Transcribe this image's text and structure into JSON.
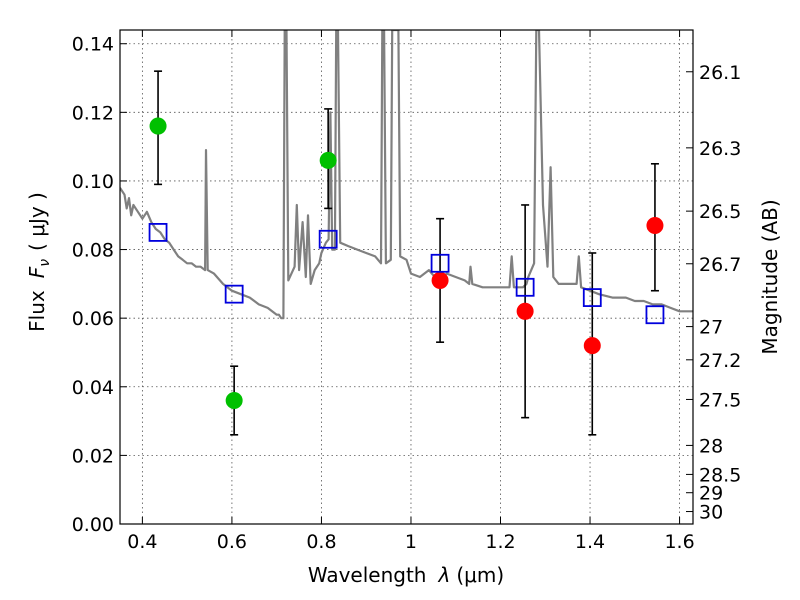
{
  "chart_data": {
    "type": "scatter",
    "xlabel": "Wavelength",
    "xlabel_symbol": "λ",
    "xlabel_unit": "(μm)",
    "ylabel": "Flux",
    "ylabel_symbol": "F",
    "ylabel_symbol_sub": "ν",
    "ylabel_unit": "( μJy )",
    "y2label": "Magnitude (AB)",
    "xlim": [
      0.35,
      1.63
    ],
    "ylim": [
      0.0,
      0.144
    ],
    "grid": true,
    "xticks": [
      {
        "value": 0.4,
        "label": "0.4"
      },
      {
        "value": 0.6,
        "label": "0.6"
      },
      {
        "value": 0.8,
        "label": "0.8"
      },
      {
        "value": 1.0,
        "label": "1"
      },
      {
        "value": 1.2,
        "label": "1.2"
      },
      {
        "value": 1.4,
        "label": "1.4"
      },
      {
        "value": 1.6,
        "label": "1.6"
      }
    ],
    "yticks": [
      {
        "value": 0.0,
        "label": "0.00"
      },
      {
        "value": 0.02,
        "label": "0.02"
      },
      {
        "value": 0.04,
        "label": "0.04"
      },
      {
        "value": 0.06,
        "label": "0.06"
      },
      {
        "value": 0.08,
        "label": "0.08"
      },
      {
        "value": 0.1,
        "label": "0.10"
      },
      {
        "value": 0.12,
        "label": "0.12"
      },
      {
        "value": 0.14,
        "label": "0.14"
      }
    ],
    "y2ticks": [
      {
        "value": 26.1,
        "label": "26.1"
      },
      {
        "value": 26.3,
        "label": "26.3"
      },
      {
        "value": 26.5,
        "label": "26.5"
      },
      {
        "value": 26.7,
        "label": "26.7"
      },
      {
        "value": 27.0,
        "label": "27"
      },
      {
        "value": 27.2,
        "label": "27.2"
      },
      {
        "value": 27.5,
        "label": "27.5"
      },
      {
        "value": 28.0,
        "label": "28"
      },
      {
        "value": 28.5,
        "label": "28.5"
      },
      {
        "value": 29.0,
        "label": "29"
      },
      {
        "value": 30.0,
        "label": "30"
      }
    ],
    "series": [
      {
        "type": "line",
        "color": "#808080",
        "points": [
          [
            0.35,
            0.098
          ],
          [
            0.36,
            0.096
          ],
          [
            0.365,
            0.092
          ],
          [
            0.37,
            0.095
          ],
          [
            0.375,
            0.09
          ],
          [
            0.38,
            0.093
          ],
          [
            0.39,
            0.091
          ],
          [
            0.4,
            0.089
          ],
          [
            0.41,
            0.091
          ],
          [
            0.42,
            0.088
          ],
          [
            0.43,
            0.086
          ],
          [
            0.44,
            0.085
          ],
          [
            0.45,
            0.083
          ],
          [
            0.46,
            0.082
          ],
          [
            0.47,
            0.08
          ],
          [
            0.48,
            0.078
          ],
          [
            0.49,
            0.077
          ],
          [
            0.5,
            0.076
          ],
          [
            0.51,
            0.076
          ],
          [
            0.52,
            0.075
          ],
          [
            0.53,
            0.075
          ],
          [
            0.54,
            0.074
          ],
          [
            0.542,
            0.109
          ],
          [
            0.546,
            0.074
          ],
          [
            0.56,
            0.073
          ],
          [
            0.58,
            0.07
          ],
          [
            0.6,
            0.068
          ],
          [
            0.62,
            0.067
          ],
          [
            0.64,
            0.066
          ],
          [
            0.66,
            0.064
          ],
          [
            0.68,
            0.063
          ],
          [
            0.7,
            0.061
          ],
          [
            0.705,
            0.061
          ],
          [
            0.71,
            0.06
          ],
          [
            0.715,
            0.06
          ],
          [
            0.718,
            0.144
          ],
          [
            0.722,
            0.144
          ],
          [
            0.726,
            0.071
          ],
          [
            0.74,
            0.075
          ],
          [
            0.745,
            0.093
          ],
          [
            0.75,
            0.074
          ],
          [
            0.758,
            0.088
          ],
          [
            0.765,
            0.072
          ],
          [
            0.77,
            0.09
          ],
          [
            0.776,
            0.07
          ],
          [
            0.785,
            0.074
          ],
          [
            0.795,
            0.076
          ],
          [
            0.8,
            0.079
          ],
          [
            0.81,
            0.082
          ],
          [
            0.816,
            0.083
          ],
          [
            0.82,
            0.12
          ],
          [
            0.824,
            0.08
          ],
          [
            0.83,
            0.08
          ],
          [
            0.833,
            0.144
          ],
          [
            0.837,
            0.144
          ],
          [
            0.842,
            0.082
          ],
          [
            0.86,
            0.081
          ],
          [
            0.88,
            0.08
          ],
          [
            0.9,
            0.079
          ],
          [
            0.92,
            0.078
          ],
          [
            0.933,
            0.076
          ],
          [
            0.936,
            0.144
          ],
          [
            0.94,
            0.144
          ],
          [
            0.944,
            0.076
          ],
          [
            0.955,
            0.077
          ],
          [
            0.958,
            0.144
          ],
          [
            0.972,
            0.144
          ],
          [
            0.976,
            0.078
          ],
          [
            0.99,
            0.077
          ],
          [
            1.0,
            0.073
          ],
          [
            1.02,
            0.072
          ],
          [
            1.04,
            0.074
          ],
          [
            1.06,
            0.071
          ],
          [
            1.08,
            0.073
          ],
          [
            1.1,
            0.072
          ],
          [
            1.12,
            0.071
          ],
          [
            1.13,
            0.07
          ],
          [
            1.133,
            0.075
          ],
          [
            1.137,
            0.07
          ],
          [
            1.16,
            0.069
          ],
          [
            1.18,
            0.069
          ],
          [
            1.2,
            0.069
          ],
          [
            1.22,
            0.069
          ],
          [
            1.225,
            0.078
          ],
          [
            1.23,
            0.069
          ],
          [
            1.25,
            0.069
          ],
          [
            1.258,
            0.07
          ],
          [
            1.262,
            0.072
          ],
          [
            1.275,
            0.076
          ],
          [
            1.28,
            0.144
          ],
          [
            1.286,
            0.144
          ],
          [
            1.295,
            0.093
          ],
          [
            1.305,
            0.075
          ],
          [
            1.312,
            0.104
          ],
          [
            1.318,
            0.072
          ],
          [
            1.33,
            0.07
          ],
          [
            1.35,
            0.07
          ],
          [
            1.37,
            0.07
          ],
          [
            1.375,
            0.078
          ],
          [
            1.38,
            0.069
          ],
          [
            1.4,
            0.068
          ],
          [
            1.42,
            0.067
          ],
          [
            1.45,
            0.066
          ],
          [
            1.48,
            0.066
          ],
          [
            1.5,
            0.065
          ],
          [
            1.52,
            0.065
          ],
          [
            1.54,
            0.064
          ],
          [
            1.56,
            0.064
          ],
          [
            1.58,
            0.063
          ],
          [
            1.6,
            0.062
          ],
          [
            1.63,
            0.062
          ]
        ]
      },
      {
        "type": "scatter",
        "marker": "circle",
        "color": "#00c000",
        "points": [
          {
            "x": 0.435,
            "y": 0.116,
            "ylow": 0.099,
            "yhigh": 0.132
          },
          {
            "x": 0.605,
            "y": 0.036,
            "ylow": 0.026,
            "yhigh": 0.046
          },
          {
            "x": 0.815,
            "y": 0.106,
            "ylow": 0.092,
            "yhigh": 0.121
          }
        ]
      },
      {
        "type": "scatter",
        "marker": "circle",
        "color": "#ff0000",
        "points": [
          {
            "x": 1.065,
            "y": 0.071,
            "ylow": 0.053,
            "yhigh": 0.089
          },
          {
            "x": 1.255,
            "y": 0.062,
            "ylow": 0.031,
            "yhigh": 0.093
          },
          {
            "x": 1.405,
            "y": 0.052,
            "ylow": 0.026,
            "yhigh": 0.079
          },
          {
            "x": 1.545,
            "y": 0.087,
            "ylow": 0.068,
            "yhigh": 0.105
          }
        ]
      },
      {
        "type": "scatter",
        "marker": "open-square",
        "color": "#0000dd",
        "points": [
          {
            "x": 0.435,
            "y": 0.085
          },
          {
            "x": 0.605,
            "y": 0.067
          },
          {
            "x": 0.815,
            "y": 0.083
          },
          {
            "x": 1.065,
            "y": 0.076
          },
          {
            "x": 1.255,
            "y": 0.069
          },
          {
            "x": 1.405,
            "y": 0.066
          },
          {
            "x": 1.545,
            "y": 0.061
          }
        ]
      }
    ]
  }
}
